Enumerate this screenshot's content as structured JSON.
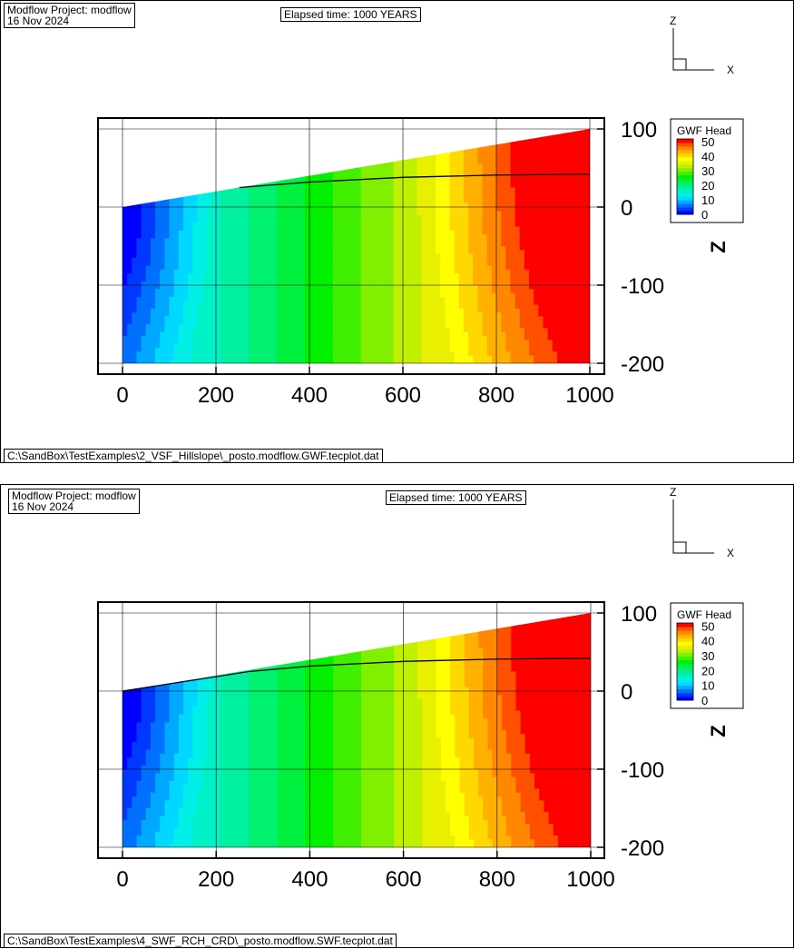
{
  "colors": {
    "palette": [
      "#0000ff",
      "#0038ff",
      "#0070ff",
      "#00a8ff",
      "#00d8ff",
      "#00f0e8",
      "#00f0c8",
      "#00f0a0",
      "#00f070",
      "#00f040",
      "#00f000",
      "#40f000",
      "#80f000",
      "#c0f000",
      "#e8f000",
      "#ffff00",
      "#ffd800",
      "#ffb000",
      "#ff8800",
      "#ff5000",
      "#ff0000"
    ],
    "line": "#000000",
    "frame": "#000000"
  },
  "panels": [
    {
      "id": "top",
      "project_line1": "Modflow Project: modflow",
      "project_line2": "16 Nov 2024",
      "elapsed": "Elapsed time: 1000 YEARS",
      "file_path": "C:\\SandBox\\TestExamples\\2_VSF_Hillslope\\_posto.modflow.GWF.tecplot.dat",
      "axes_z": "Z",
      "axes_x": "X"
    },
    {
      "id": "bottom",
      "project_line1": "Modflow Project: modflow",
      "project_line2": "16 Nov 2024",
      "elapsed": "Elapsed time: 1000 YEARS",
      "file_path": "C:\\SandBox\\TestExamples\\4_SWF_RCH_CRD\\_posto.modflow.SWF.tecplot.dat",
      "axes_z": "Z",
      "axes_x": "X"
    }
  ],
  "chart_data": [
    {
      "type": "heatmap",
      "xlabel": "",
      "ylabel": "Z",
      "xlim": [
        -50,
        1050
      ],
      "ylim": [
        -200,
        105
      ],
      "x_ticks": [
        "0",
        "200",
        "400",
        "600",
        "800",
        "1000"
      ],
      "x_tick_values": [
        0,
        200,
        400,
        600,
        800,
        1000
      ],
      "y_ticks": [
        "100",
        "0",
        "-100",
        "-200"
      ],
      "y_tick_values": [
        100,
        0,
        -100,
        -200
      ],
      "grid": true,
      "legend_title": "GWF Head",
      "legend_labels": [
        "50",
        "40",
        "30",
        "20",
        "10",
        "0"
      ],
      "legend_values": [
        50,
        40,
        30,
        20,
        10,
        0
      ],
      "legend_range": [
        0,
        52
      ],
      "legend_placement": "top-right",
      "domain_top": [
        [
          0,
          0
        ],
        [
          250,
          25
        ],
        [
          1000,
          100
        ]
      ],
      "domain_bottom": -200,
      "water_table": [
        [
          250,
          25
        ],
        [
          400,
          32
        ],
        [
          600,
          38
        ],
        [
          800,
          41
        ],
        [
          1000,
          42
        ]
      ],
      "head_field": "increasing with x from about 0 at x=0 to about 52 at top-right corner"
    },
    {
      "type": "heatmap",
      "xlabel": "",
      "ylabel": "Z",
      "xlim": [
        -50,
        1050
      ],
      "ylim": [
        -200,
        105
      ],
      "x_ticks": [
        "0",
        "200",
        "400",
        "600",
        "800",
        "1000"
      ],
      "x_tick_values": [
        0,
        200,
        400,
        600,
        800,
        1000
      ],
      "y_ticks": [
        "100",
        "0",
        "-100",
        "-200"
      ],
      "y_tick_values": [
        100,
        0,
        -100,
        -200
      ],
      "grid": true,
      "legend_title": "GWF Head",
      "legend_labels": [
        "50",
        "40",
        "30",
        "20",
        "10",
        "0"
      ],
      "legend_values": [
        50,
        40,
        30,
        20,
        10,
        0
      ],
      "legend_range": [
        0,
        52
      ],
      "legend_placement": "top-right",
      "domain_top": [
        [
          0,
          0
        ],
        [
          250,
          25
        ],
        [
          1000,
          100
        ]
      ],
      "domain_bottom": -200,
      "water_table": [
        [
          0,
          0
        ],
        [
          270,
          25
        ],
        [
          400,
          32
        ],
        [
          600,
          38
        ],
        [
          800,
          41
        ],
        [
          1000,
          42
        ]
      ],
      "head_field": "increasing with x from about 0 at x=0 to about 52 at top-right corner"
    }
  ]
}
